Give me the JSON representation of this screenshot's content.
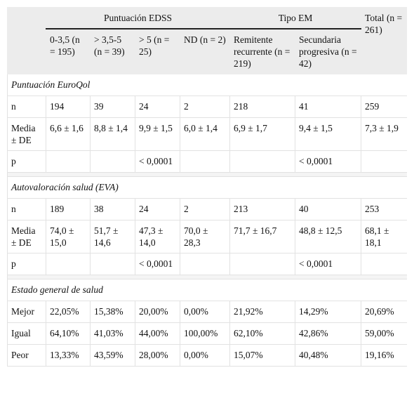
{
  "header": {
    "groups": [
      "Puntuación EDSS",
      "Tipo EM"
    ],
    "total": "Total (n = 261)",
    "subcolumns": [
      "0-3,5 (n = 195)",
      "> 3,5-5 (n = 39)",
      "> 5 (n = 25)",
      "ND (n = 2)",
      "Remitente recurrente (n = 219)",
      "Secundaria progresiva (n = 42)"
    ]
  },
  "sections": [
    {
      "title": "Puntuación EuroQol",
      "rows": [
        {
          "label": "n",
          "cells": [
            "194",
            "39",
            "24",
            "2",
            "218",
            "41",
            "259"
          ]
        },
        {
          "label": "Media ± DE",
          "cells": [
            "6,6 ± 1,6",
            "8,8 ± 1,4",
            "9,9 ± 1,5",
            "6,0 ± 1,4",
            "6,9 ± 1,7",
            "9,4 ± 1,5",
            "7,3 ± 1,9"
          ]
        },
        {
          "label": "p",
          "cells": [
            null,
            null,
            "< 0,0001",
            null,
            null,
            "< 0,0001",
            null
          ]
        }
      ]
    },
    {
      "title": "Autovaloración salud (EVA)",
      "rows": [
        {
          "label": "n",
          "cells": [
            "189",
            "38",
            "24",
            "2",
            "213",
            "40",
            "253"
          ]
        },
        {
          "label": "Media ± DE",
          "cells": [
            "74,0 ± 15,0",
            "51,7 ± 14,6",
            "47,3 ± 14,0",
            "70,0 ± 28,3",
            "71,7 ± 16,7",
            "48,8 ± 12,5",
            "68,1 ± 18,1"
          ]
        },
        {
          "label": "p",
          "cells": [
            null,
            null,
            "< 0,0001",
            null,
            null,
            "< 0,0001",
            null
          ]
        }
      ]
    },
    {
      "title": "Estado general de salud",
      "rows": [
        {
          "label": "Mejor",
          "cells": [
            "22,05%",
            "15,38%",
            "20,00%",
            "0,00%",
            "21,92%",
            "14,29%",
            "20,69%"
          ]
        },
        {
          "label": "Igual",
          "cells": [
            "64,10%",
            "41,03%",
            "44,00%",
            "100,00%",
            "62,10%",
            "42,86%",
            "59,00%"
          ]
        },
        {
          "label": "Peor",
          "cells": [
            "13,33%",
            "43,59%",
            "28,00%",
            "0,00%",
            "15,07%",
            "40,48%",
            "19,16%"
          ]
        }
      ]
    }
  ]
}
